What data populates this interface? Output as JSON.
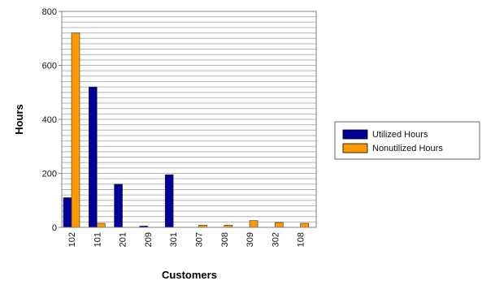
{
  "chart_data": {
    "type": "bar",
    "categories": [
      "102",
      "101",
      "201",
      "209",
      "301",
      "307",
      "308",
      "309",
      "302",
      "108"
    ],
    "series": [
      {
        "name": "Utilized Hours",
        "color": "#000099",
        "values": [
          110,
          520,
          160,
          5,
          195,
          0,
          0,
          0,
          0,
          0
        ]
      },
      {
        "name": "Nonutilized Hours",
        "color": "#FF9900",
        "values": [
          720,
          15,
          0,
          0,
          0,
          8,
          8,
          25,
          18,
          15
        ]
      }
    ],
    "xlabel": "Customers",
    "ylabel": "Hours",
    "ylim": [
      0,
      800
    ],
    "yticks": [
      0,
      200,
      400,
      600,
      800
    ],
    "legend_position": "right",
    "grid": true
  }
}
